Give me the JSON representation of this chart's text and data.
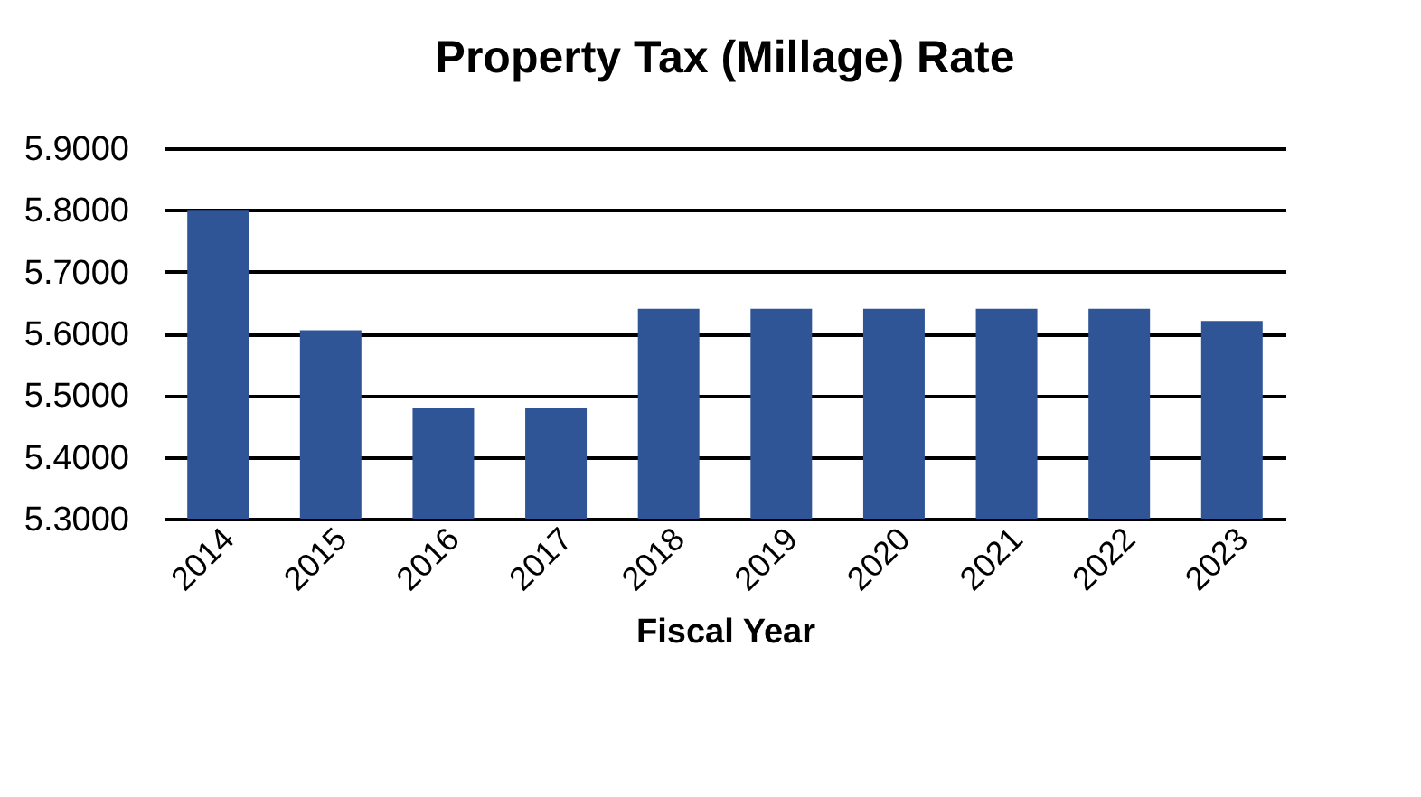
{
  "chart_data": {
    "type": "bar",
    "title": "Property Tax (Millage) Rate",
    "xlabel": "Fiscal Year",
    "categories": [
      "2014",
      "2015",
      "2016",
      "2017",
      "2018",
      "2019",
      "2020",
      "2021",
      "2022",
      "2023"
    ],
    "values": [
      5.8,
      5.605,
      5.48,
      5.48,
      5.64,
      5.64,
      5.64,
      5.64,
      5.64,
      5.62
    ],
    "color": "#2f5597",
    "ylim": [
      5.3,
      5.9
    ],
    "yticks": [
      {
        "value": 5.3,
        "label": "5.3000"
      },
      {
        "value": 5.4,
        "label": "5.4000"
      },
      {
        "value": 5.5,
        "label": "5.5000"
      },
      {
        "value": 5.6,
        "label": "5.6000"
      },
      {
        "value": 5.7,
        "label": "5.7000"
      },
      {
        "value": 5.8,
        "label": "5.8000"
      },
      {
        "value": 5.9,
        "label": "5.9000"
      }
    ],
    "grid": "y"
  }
}
